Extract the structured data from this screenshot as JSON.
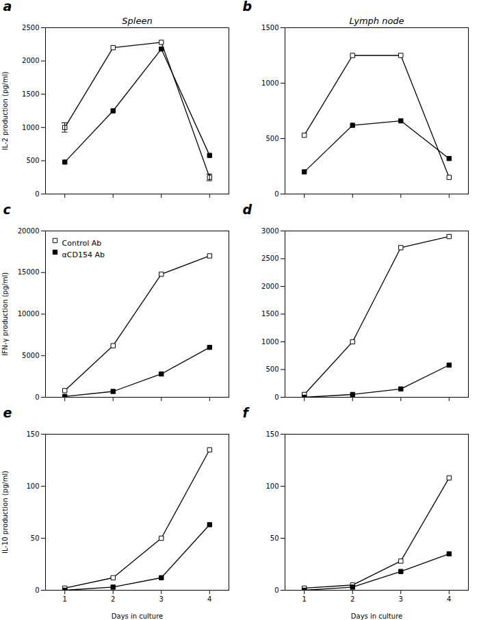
{
  "chart_data": [
    {
      "type": "line",
      "title": "Spleen",
      "ylabel": "IL-2 production (pg/ml)",
      "x": [
        1,
        2,
        3,
        4
      ],
      "xlim": [
        0.6,
        4.4
      ],
      "xticks": [
        1,
        2,
        3,
        4
      ],
      "ylim": [
        0,
        2500
      ],
      "yticks": [
        0,
        500,
        1000,
        1500,
        2000,
        2500
      ],
      "tick_labels": "y",
      "annotations": [
        "a"
      ],
      "series": [
        {
          "color": "black",
          "marker": "square_open",
          "values": [
            1000,
            2200,
            2280,
            250
          ],
          "errors": [
            70,
            null,
            null,
            50
          ]
        },
        {
          "color": "black",
          "marker": "square",
          "values": [
            480,
            1250,
            2180,
            580
          ]
        }
      ]
    },
    {
      "type": "line",
      "title": "Lymph node",
      "x": [
        1,
        2,
        3,
        4
      ],
      "xlim": [
        0.6,
        4.4
      ],
      "xticks": [
        1,
        2,
        3,
        4
      ],
      "ylim": [
        0,
        1500
      ],
      "yticks": [
        0,
        500,
        1000,
        1500
      ],
      "tick_labels": "y",
      "annotations": [
        "b"
      ],
      "series": [
        {
          "color": "black",
          "marker": "square_open",
          "values": [
            530,
            1250,
            1250,
            150
          ]
        },
        {
          "color": "black",
          "marker": "square",
          "values": [
            200,
            620,
            660,
            320
          ]
        }
      ]
    },
    {
      "type": "line",
      "ylabel": "IFN-γ production (pg/ml)",
      "x": [
        1,
        2,
        3,
        4
      ],
      "xlim": [
        0.6,
        4.4
      ],
      "xticks": [
        1,
        2,
        3,
        4
      ],
      "ylim": [
        0,
        20000
      ],
      "yticks": [
        0,
        5000,
        10000,
        15000,
        20000
      ],
      "tick_labels": "y",
      "annotations": [
        "c"
      ],
      "legend": "upper left",
      "series": [
        {
          "name": "Control Ab",
          "color": "black",
          "marker": "square_open",
          "values": [
            800,
            6200,
            14800,
            17000
          ]
        },
        {
          "name": "αCD154 Ab",
          "color": "black",
          "marker": "square",
          "values": [
            100,
            700,
            2800,
            6000
          ]
        }
      ]
    },
    {
      "type": "line",
      "x": [
        1,
        2,
        3,
        4
      ],
      "xlim": [
        0.6,
        4.4
      ],
      "xticks": [
        1,
        2,
        3,
        4
      ],
      "ylim": [
        0,
        3000
      ],
      "yticks": [
        0,
        500,
        1000,
        1500,
        2000,
        2500,
        3000
      ],
      "tick_labels": "y",
      "annotations": [
        "d"
      ],
      "series": [
        {
          "color": "black",
          "marker": "square_open",
          "values": [
            50,
            1000,
            2700,
            2900
          ]
        },
        {
          "color": "black",
          "marker": "square",
          "values": [
            0,
            50,
            150,
            580
          ]
        }
      ]
    },
    {
      "type": "line",
      "ylabel": "IL-10 production (pg/ml)",
      "xlabel": "Days in culture",
      "x": [
        1,
        2,
        3,
        4
      ],
      "xlim": [
        0.6,
        4.4
      ],
      "xticks": [
        1,
        2,
        3,
        4
      ],
      "ylim": [
        0,
        150
      ],
      "yticks": [
        0,
        50,
        100,
        150
      ],
      "annotations": [
        "e"
      ],
      "series": [
        {
          "color": "black",
          "marker": "square_open",
          "values": [
            2,
            12,
            50,
            135
          ]
        },
        {
          "color": "black",
          "marker": "square",
          "values": [
            0,
            3,
            12,
            63
          ]
        }
      ]
    },
    {
      "type": "line",
      "xlabel": "Days in culture",
      "x": [
        1,
        2,
        3,
        4
      ],
      "xlim": [
        0.6,
        4.4
      ],
      "xticks": [
        1,
        2,
        3,
        4
      ],
      "ylim": [
        0,
        150
      ],
      "yticks": [
        0,
        50,
        100,
        150
      ],
      "annotations": [
        "f"
      ],
      "series": [
        {
          "color": "black",
          "marker": "square_open",
          "values": [
            2,
            5,
            28,
            108
          ]
        },
        {
          "color": "black",
          "marker": "square",
          "values": [
            0,
            3,
            18,
            35
          ]
        }
      ]
    }
  ]
}
